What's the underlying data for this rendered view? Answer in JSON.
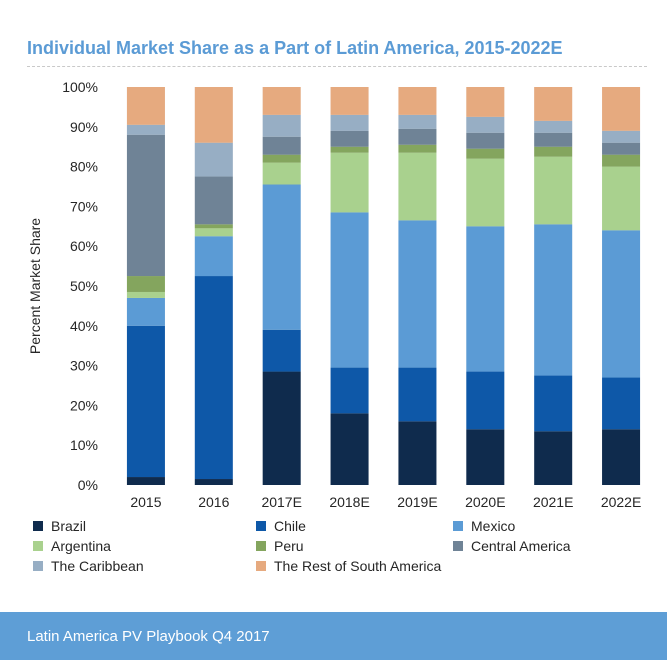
{
  "chart_data": {
    "type": "bar",
    "stacked": true,
    "title": "Individual Market Share as a Part of Latin America, 2015-2022E",
    "xlabel": "",
    "ylabel": "Percent Market Share",
    "ylim": [
      0,
      100
    ],
    "yticks": [
      "0%",
      "10%",
      "20%",
      "30%",
      "40%",
      "50%",
      "60%",
      "70%",
      "80%",
      "90%",
      "100%"
    ],
    "categories": [
      "2015",
      "2016",
      "2017E",
      "2018E",
      "2019E",
      "2020E",
      "2021E",
      "2022E"
    ],
    "series": [
      {
        "name": "Brazil",
        "color": "#0f2b4d",
        "values": [
          2,
          1.5,
          28.5,
          18,
          16,
          14,
          13.5,
          14
        ]
      },
      {
        "name": "Chile",
        "color": "#0e58a8",
        "values": [
          38,
          51,
          10.5,
          11.5,
          13.5,
          14.5,
          14,
          13
        ]
      },
      {
        "name": "Mexico",
        "color": "#5b9bd5",
        "values": [
          7,
          10,
          36.5,
          39,
          37,
          36.5,
          38,
          37
        ]
      },
      {
        "name": "Argentina",
        "color": "#a9d18e",
        "values": [
          1.5,
          2,
          5.5,
          15,
          17,
          17,
          17,
          16
        ]
      },
      {
        "name": "Peru",
        "color": "#84a55e",
        "values": [
          4,
          1,
          2,
          1.5,
          2,
          2.5,
          2.5,
          3
        ]
      },
      {
        "name": "Central America",
        "color": "#6f8396",
        "values": [
          35.5,
          12,
          4.5,
          4,
          4,
          4,
          3.5,
          3
        ]
      },
      {
        "name": "The Caribbean",
        "color": "#97aec4",
        "values": [
          2.5,
          8.5,
          5.5,
          4,
          3.5,
          4,
          3,
          3
        ]
      },
      {
        "name": "The Rest of South America",
        "color": "#e6aa7f",
        "values": [
          9.5,
          14,
          7,
          7,
          7,
          7.5,
          8.5,
          11
        ]
      }
    ],
    "grid": false,
    "legend_position": "bottom"
  },
  "footer": {
    "text": "Latin America PV Playbook Q4 2017"
  }
}
